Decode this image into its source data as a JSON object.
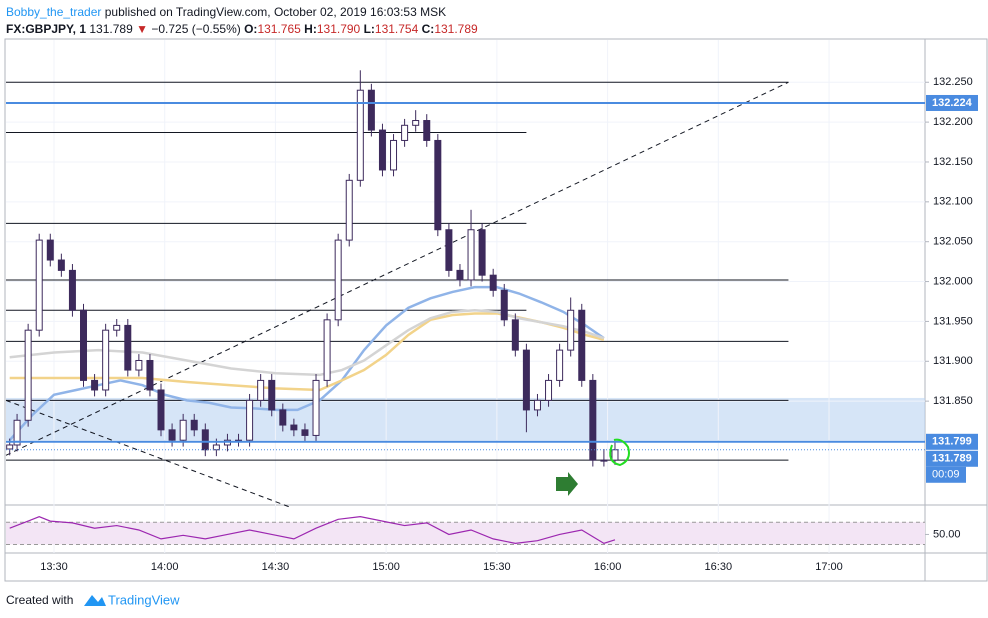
{
  "header": {
    "author": "Bobby_the_trader",
    "published": "published on TradingView.com, October 02, 2019 16:03:53 MSK",
    "symbol": "FX:GBPJPY, 1",
    "last": "131.789",
    "arrow": "▼",
    "change": "−0.725 (−0.55%)",
    "o_label": "O:",
    "o": "131.765",
    "h_label": "H:",
    "h": "131.790",
    "l_label": "L:",
    "l": "131.754",
    "c_label": "C:",
    "c": "131.789"
  },
  "footer": {
    "created": "Created with",
    "brand": "TradingView"
  },
  "chart_data": {
    "type": "candlestick",
    "x": [
      "13:18",
      "13:20",
      "13:23",
      "13:26",
      "13:29",
      "13:32",
      "13:35",
      "13:38",
      "13:41",
      "13:44",
      "13:47",
      "13:50",
      "13:53",
      "13:56",
      "13:59",
      "14:02",
      "14:05",
      "14:08",
      "14:11",
      "14:14",
      "14:17",
      "14:20",
      "14:23",
      "14:26",
      "14:29",
      "14:32",
      "14:35",
      "14:38",
      "14:41",
      "14:44",
      "14:47",
      "14:50",
      "14:53",
      "14:56",
      "14:59",
      "15:02",
      "15:05",
      "15:08",
      "15:11",
      "15:14",
      "15:17",
      "15:20",
      "15:23",
      "15:26",
      "15:29",
      "15:32",
      "15:35",
      "15:38",
      "15:41",
      "15:44",
      "15:47",
      "15:50",
      "15:53",
      "15:56",
      "15:59",
      "16:02"
    ],
    "open": [
      131.79,
      131.795,
      131.826,
      131.939,
      132.052,
      132.027,
      132.014,
      131.964,
      131.876,
      131.864,
      131.939,
      131.945,
      131.889,
      131.901,
      131.864,
      131.814,
      131.801,
      131.826,
      131.814,
      131.789,
      131.795,
      131.801,
      131.801,
      131.851,
      131.876,
      131.839,
      131.82,
      131.814,
      131.807,
      131.876,
      131.952,
      132.052,
      132.127,
      132.24,
      132.19,
      132.14,
      132.177,
      132.196,
      132.202,
      132.177,
      132.065,
      132.014,
      132.002,
      132.065,
      132.008,
      131.989,
      131.952,
      131.914,
      131.839,
      131.851,
      131.876,
      131.914,
      131.964,
      131.876,
      131.776,
      131.776
    ],
    "high": [
      131.803,
      131.834,
      131.947,
      132.06,
      132.06,
      132.035,
      132.022,
      131.972,
      131.884,
      131.947,
      131.953,
      131.953,
      131.909,
      131.909,
      131.872,
      131.822,
      131.834,
      131.834,
      131.822,
      131.803,
      131.809,
      131.809,
      131.859,
      131.884,
      131.884,
      131.847,
      131.828,
      131.822,
      131.884,
      131.96,
      132.06,
      132.135,
      132.265,
      132.248,
      132.198,
      132.185,
      132.204,
      132.215,
      132.21,
      132.185,
      132.073,
      132.022,
      132.09,
      132.073,
      132.016,
      131.997,
      131.96,
      131.922,
      131.859,
      131.884,
      131.922,
      131.98,
      131.972,
      131.884,
      131.79,
      131.8
    ],
    "low": [
      131.782,
      131.787,
      131.818,
      131.931,
      132.019,
      132.006,
      131.956,
      131.868,
      131.856,
      131.856,
      131.931,
      131.881,
      131.881,
      131.856,
      131.806,
      131.793,
      131.793,
      131.806,
      131.781,
      131.781,
      131.787,
      131.793,
      131.793,
      131.843,
      131.831,
      131.812,
      131.806,
      131.799,
      131.799,
      131.868,
      131.944,
      132.044,
      132.119,
      132.182,
      132.132,
      132.132,
      132.169,
      132.188,
      132.169,
      132.057,
      132.006,
      131.994,
      131.994,
      132.0,
      131.981,
      131.944,
      131.906,
      131.811,
      131.831,
      131.843,
      131.868,
      131.906,
      131.868,
      131.768,
      131.768,
      131.77
    ],
    "close": [
      131.795,
      131.826,
      131.939,
      132.052,
      132.027,
      132.014,
      131.964,
      131.876,
      131.864,
      131.939,
      131.945,
      131.889,
      131.901,
      131.864,
      131.814,
      131.801,
      131.826,
      131.814,
      131.789,
      131.795,
      131.801,
      131.801,
      131.851,
      131.876,
      131.839,
      131.82,
      131.814,
      131.807,
      131.876,
      131.952,
      132.052,
      132.127,
      132.24,
      132.19,
      132.14,
      132.177,
      132.196,
      132.202,
      132.177,
      132.065,
      132.014,
      132.002,
      132.065,
      132.008,
      131.989,
      131.952,
      131.914,
      131.839,
      131.851,
      131.876,
      131.914,
      131.964,
      131.876,
      131.776,
      131.776,
      131.789
    ],
    "up_color": "#ffffff",
    "down_color": "#3d2a5c",
    "series": [
      {
        "color": "#90b4e8",
        "x": [
          "13:18",
          "13:24",
          "13:30",
          "13:36",
          "13:42",
          "13:48",
          "13:54",
          "14:00",
          "14:06",
          "14:12",
          "14:18",
          "14:24",
          "14:30",
          "14:36",
          "14:42",
          "14:48",
          "14:54",
          "15:00",
          "15:06",
          "15:12",
          "15:18",
          "15:24",
          "15:30",
          "15:36",
          "15:42",
          "15:48",
          "15:54",
          "15:59"
        ],
        "values": [
          131.801,
          131.832,
          131.858,
          131.864,
          131.87,
          131.876,
          131.87,
          131.858,
          131.851,
          131.848,
          131.842,
          131.841,
          131.839,
          131.839,
          131.851,
          131.876,
          131.914,
          131.945,
          131.967,
          131.979,
          131.987,
          131.993,
          131.993,
          131.985,
          131.974,
          131.962,
          131.945,
          131.929
        ]
      },
      {
        "color": "#f2d38a",
        "x": [
          "13:18",
          "13:30",
          "13:42",
          "13:54",
          "14:06",
          "14:18",
          "14:30",
          "14:42",
          "14:48",
          "14:54",
          "15:00",
          "15:06",
          "15:12",
          "15:18",
          "15:24",
          "15:30",
          "15:36",
          "15:42",
          "15:48",
          "15:54",
          "15:59"
        ],
        "values": [
          131.879,
          131.879,
          131.879,
          131.879,
          131.874,
          131.87,
          131.866,
          131.864,
          131.876,
          131.889,
          131.908,
          131.933,
          131.952,
          131.958,
          131.96,
          131.96,
          131.955,
          131.949,
          131.942,
          131.933,
          131.927
        ]
      },
      {
        "color": "#d4d4d4",
        "x": [
          "13:18",
          "13:30",
          "13:42",
          "13:54",
          "14:06",
          "14:18",
          "14:30",
          "14:42",
          "14:48",
          "14:54",
          "15:00",
          "15:06",
          "15:12",
          "15:18",
          "15:24",
          "15:30",
          "15:36",
          "15:42",
          "15:48",
          "15:54",
          "15:59"
        ],
        "values": [
          131.905,
          131.911,
          131.914,
          131.911,
          131.901,
          131.891,
          131.885,
          131.883,
          131.889,
          131.901,
          131.92,
          131.939,
          131.954,
          131.962,
          131.964,
          131.962,
          131.954,
          131.949,
          131.944,
          131.937,
          131.929
        ]
      }
    ],
    "xlim": [
      "13:17",
      "17:26"
    ],
    "xticks": [
      "13:30",
      "14:00",
      "14:30",
      "15:00",
      "15:30",
      "16:00",
      "16:30",
      "17:00"
    ],
    "ylim": [
      131.726,
      132.303
    ],
    "yticks": [
      {
        "value": 131.85,
        "label": "131.850"
      },
      {
        "value": 131.9,
        "label": "131.900"
      },
      {
        "value": 131.95,
        "label": "131.950"
      },
      {
        "value": 132.0,
        "label": "132.000"
      },
      {
        "value": 132.05,
        "label": "132.050"
      },
      {
        "value": 132.1,
        "label": "132.100"
      },
      {
        "value": 132.15,
        "label": "132.150"
      },
      {
        "value": 132.2,
        "label": "132.200"
      },
      {
        "value": 132.25,
        "label": "132.250"
      }
    ],
    "grid": true,
    "levels": [
      {
        "value": 132.25,
        "end": "16:49"
      },
      {
        "value": 132.187,
        "end": "15:38"
      },
      {
        "value": 132.073,
        "end": "15:38"
      },
      {
        "value": 132.002,
        "end": "16:49"
      },
      {
        "value": 131.964,
        "end": "15:38"
      },
      {
        "value": 131.925,
        "end": "16:49"
      },
      {
        "value": 131.851,
        "end": "16:49"
      },
      {
        "value": 131.776,
        "end": "16:49"
      }
    ],
    "zone": [
      131.801,
      131.854
    ],
    "trendlines": [
      {
        "x": [
          "13:17",
          "16:49"
        ],
        "y": [
          131.782,
          132.25
        ]
      },
      {
        "x": [
          "13:17",
          "14:34"
        ],
        "y": [
          131.851,
          131.717
        ]
      }
    ],
    "price_tags": [
      {
        "value": 132.224,
        "label": "132.224",
        "style": "solid"
      },
      {
        "value": 131.799,
        "label": "131.799",
        "style": "solid"
      },
      {
        "value": 131.789,
        "label": "131.789",
        "style": "dotted"
      }
    ],
    "countdown": "00:09",
    "rsi": {
      "color": "#9c27b0",
      "x": [
        "13:18",
        "13:23",
        "13:26",
        "13:29",
        "13:35",
        "13:41",
        "13:47",
        "13:53",
        "13:59",
        "14:05",
        "14:11",
        "14:17",
        "14:23",
        "14:29",
        "14:35",
        "14:41",
        "14:47",
        "14:53",
        "14:59",
        "15:05",
        "15:11",
        "15:17",
        "15:23",
        "15:29",
        "15:35",
        "15:41",
        "15:47",
        "15:53",
        "15:59",
        "16:02"
      ],
      "values": [
        55.6,
        62,
        66,
        62,
        60.4,
        55.6,
        58,
        54,
        46,
        49.2,
        46,
        50,
        54,
        50,
        46,
        55.6,
        63.6,
        66,
        62,
        58,
        60.4,
        50,
        54,
        46,
        42,
        44.4,
        50,
        54,
        42,
        45.2
      ],
      "ylim": [
        36,
        72
      ],
      "band": [
        61,
        41
      ],
      "yticks": [
        {
          "value": 50,
          "label": "50.00"
        }
      ]
    }
  }
}
